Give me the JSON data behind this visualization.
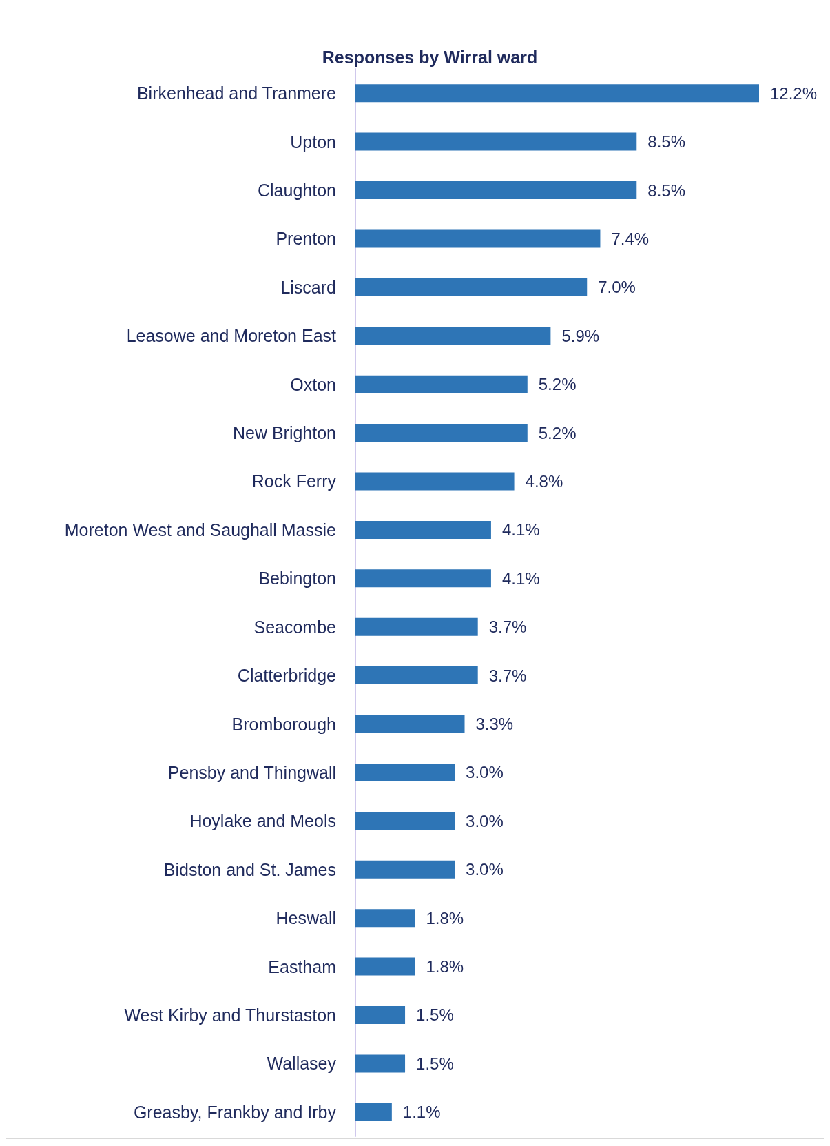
{
  "chart_data": {
    "type": "bar",
    "orientation": "horizontal",
    "title": "Responses by Wirral ward",
    "color": "#2e75b6",
    "categories": [
      "Birkenhead and Tranmere",
      "Upton",
      "Claughton",
      "Prenton",
      "Liscard",
      "Leasowe and Moreton East",
      "Oxton",
      "New Brighton",
      "Rock Ferry",
      "Moreton West and Saughall Massie",
      "Bebington",
      "Seacombe",
      "Clatterbridge",
      "Bromborough",
      "Pensby and Thingwall",
      "Hoylake and Meols",
      "Bidston and St. James",
      "Heswall",
      "Eastham",
      "West Kirby and Thurstaston",
      "Wallasey",
      "Greasby, Frankby and Irby"
    ],
    "values": [
      12.2,
      8.5,
      8.5,
      7.4,
      7.0,
      5.9,
      5.2,
      5.2,
      4.8,
      4.1,
      4.1,
      3.7,
      3.7,
      3.3,
      3.0,
      3.0,
      3.0,
      1.8,
      1.8,
      1.5,
      1.5,
      1.1
    ],
    "value_labels": [
      "12.2%",
      "8.5%",
      "8.5%",
      "7.4%",
      "7.0%",
      "5.9%",
      "5.2%",
      "5.2%",
      "4.8%",
      "4.1%",
      "4.1%",
      "3.7%",
      "3.7%",
      "3.3%",
      "3.0%",
      "3.0%",
      "3.0%",
      "1.8%",
      "1.8%",
      "1.5%",
      "1.5%",
      "1.1%"
    ]
  }
}
